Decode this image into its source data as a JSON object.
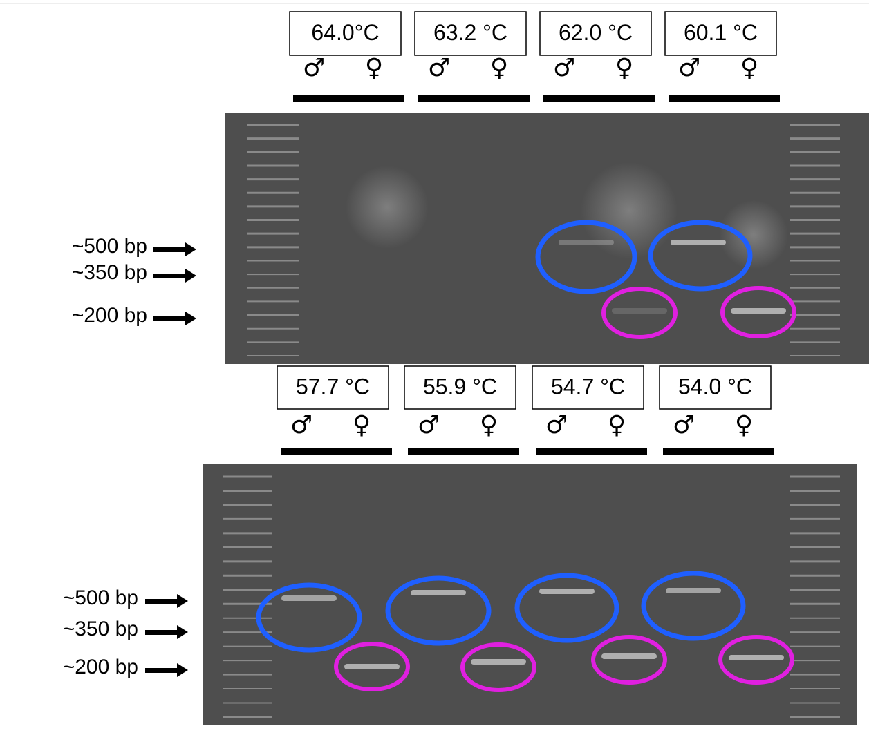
{
  "symbols": {
    "male": "♂",
    "female": "♀"
  },
  "size_labels": [
    "~500 bp",
    "~350 bp",
    "~200 bp"
  ],
  "panels": [
    {
      "temperatures": [
        "64.0°C",
        "63.2 °C",
        "62.0 °C",
        "60.1 °C"
      ]
    },
    {
      "temperatures": [
        "57.7 °C",
        "55.9 °C",
        "54.7 °C",
        "54.0 °C"
      ]
    }
  ]
}
